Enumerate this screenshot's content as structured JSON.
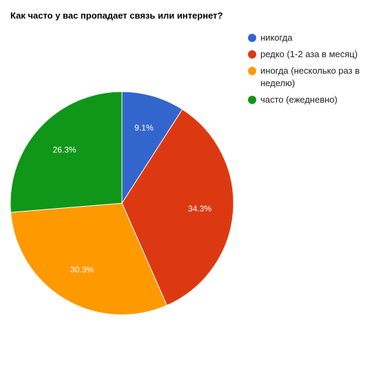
{
  "chart_data": {
    "type": "pie",
    "title": "Как часто у вас пропадает связь или интернет?",
    "categories": [
      "никогда",
      "редко (1-2 аза в месяц)",
      "иногда (несколько раз в неделю)",
      "часто (ежедневно)"
    ],
    "values": [
      9.1,
      34.3,
      30.3,
      26.3
    ],
    "value_labels": [
      "9.1%",
      "34.3%",
      "30.3%",
      "26.3%"
    ],
    "colors": [
      "#3366cc",
      "#dc3912",
      "#ff9900",
      "#109618"
    ]
  }
}
